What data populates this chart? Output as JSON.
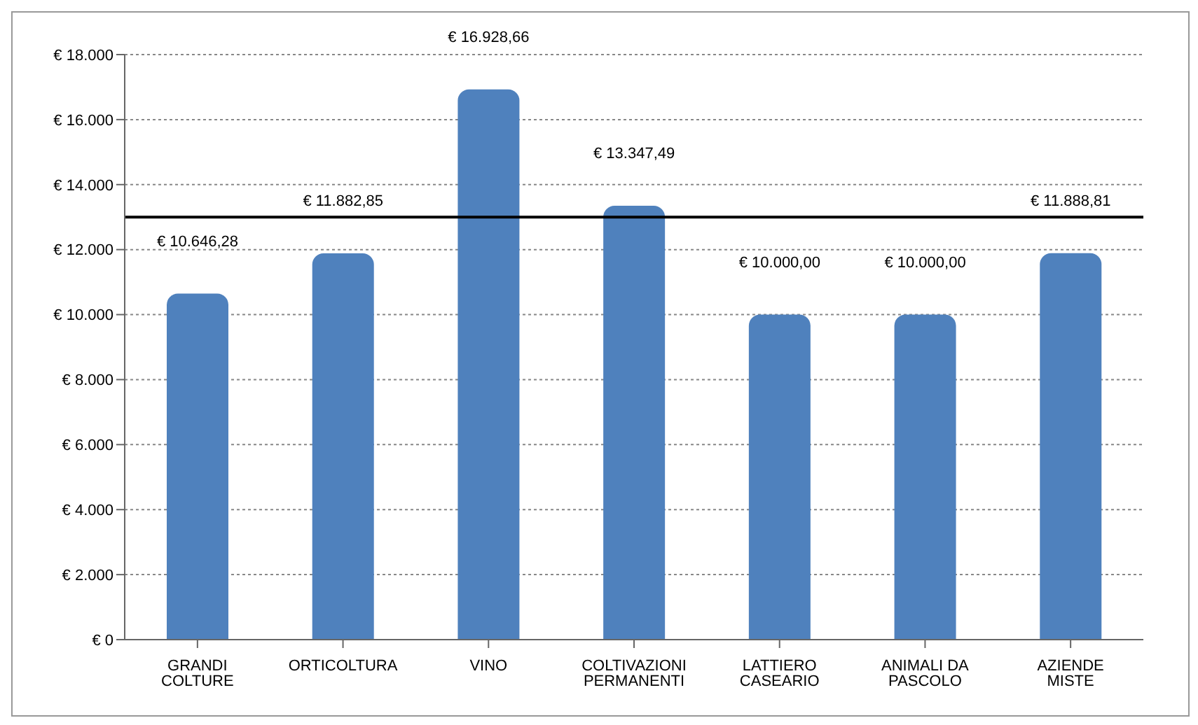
{
  "chart_data": {
    "type": "bar",
    "categories": [
      "GRANDI COLTURE",
      "ORTICOLTURA",
      "VINO",
      "COLTIVAZIONI PERMANENTI",
      "LATTIERO CASEARIO",
      "ANIMALI DA PASCOLO",
      "AZIENDE MISTE"
    ],
    "values": [
      10646.28,
      11882.85,
      16928.66,
      13347.49,
      10000,
      10000,
      11888.81
    ],
    "value_labels": [
      "€ 10.646,28",
      "€ 11.882,85",
      "€ 16.928,66",
      "€ 13.347,49",
      "€ 10.000,00",
      "€ 10.000,00",
      "€ 11.888,81"
    ],
    "color": "#4f81bd",
    "ylim": [
      0,
      18000
    ],
    "yticks": [
      {
        "value": 0,
        "label": "€ 0"
      },
      {
        "value": 2000,
        "label": "€ 2.000"
      },
      {
        "value": 4000,
        "label": "€ 4.000"
      },
      {
        "value": 6000,
        "label": "€ 6.000"
      },
      {
        "value": 8000,
        "label": "€ 8.000"
      },
      {
        "value": 10000,
        "label": "€ 10.000"
      },
      {
        "value": 12000,
        "label": "€ 12.000"
      },
      {
        "value": 14000,
        "label": "€ 14.000"
      },
      {
        "value": 16000,
        "label": "€ 16.000"
      },
      {
        "value": 18000,
        "label": "€ 18.000"
      }
    ],
    "ref_lines": [
      {
        "axis": "y",
        "value": 13000,
        "color": "#000000"
      }
    ],
    "grid": "y"
  }
}
